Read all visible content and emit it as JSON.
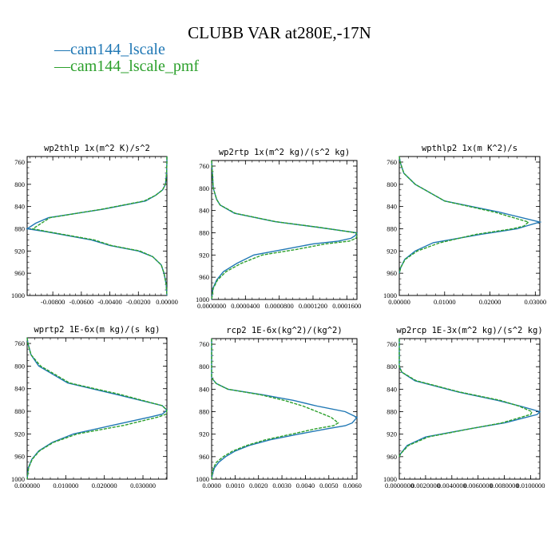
{
  "title": "CLUBB VAR at280E,-17N",
  "legend": [
    {
      "label": "cam144_lscale",
      "color": "#1f77b4"
    },
    {
      "label": "cam144_lscale_pmf",
      "color": "#2ca02c"
    }
  ],
  "chart_data": [
    {
      "type": "line",
      "title": "wp2thlp  1x(m^2 K)/s^2",
      "xlim": [
        -0.0098,
        0.0
      ],
      "ylim": [
        1000,
        750
      ],
      "x_ticks": [
        "-0.00800",
        "-0.00600",
        "-0.00400",
        "-0.00200",
        "0.00000"
      ],
      "x_tick_values": [
        -0.008,
        -0.006,
        -0.004,
        -0.002,
        0.0
      ],
      "y_ticks": [
        760,
        800,
        840,
        880,
        920,
        960,
        1000
      ],
      "y": [
        750,
        760,
        780,
        800,
        810,
        820,
        830,
        845,
        860,
        870,
        880,
        885,
        900,
        910,
        920,
        930,
        945,
        960,
        980,
        1000
      ],
      "series": [
        {
          "name": "cam144_lscale",
          "x": [
            0.0,
            0.0,
            -2e-05,
            -0.0001,
            -0.0003,
            -0.0008,
            -0.0015,
            -0.0045,
            -0.0083,
            -0.0092,
            -0.0098,
            -0.0085,
            -0.0053,
            -0.004,
            -0.002,
            -0.001,
            -0.0004,
            -0.0002,
            -5e-05,
            0.0
          ]
        },
        {
          "name": "cam144_lscale_pmf",
          "x": [
            0.0,
            0.0,
            -2e-05,
            -0.0001,
            -0.0003,
            -0.0008,
            -0.0016,
            -0.0046,
            -0.0082,
            -0.0088,
            -0.0094,
            -0.0084,
            -0.0051,
            -0.0039,
            -0.0019,
            -0.001,
            -0.0004,
            -0.0002,
            -5e-05,
            0.0
          ]
        }
      ]
    },
    {
      "type": "line",
      "title": "wp2rtp  1x(m^2 kg)/(s^2 kg)",
      "xlim": [
        0.0,
        0.000172
      ],
      "ylim": [
        1000,
        750
      ],
      "x_ticks": [
        "0.0000000",
        "0.0000400",
        "0.0000800",
        "0.0001200",
        "0.0001600"
      ],
      "x_tick_values": [
        0.0,
        4e-05,
        8e-05,
        0.00012,
        0.00016
      ],
      "y_ticks": [
        760,
        800,
        840,
        880,
        920,
        960,
        1000
      ],
      "y": [
        750,
        800,
        820,
        830,
        845,
        860,
        870,
        880,
        885,
        890,
        895,
        900,
        910,
        920,
        935,
        950,
        965,
        980,
        1000
      ],
      "series": [
        {
          "name": "cam144_lscale",
          "x": [
            0.0,
            2e-06,
            6e-06,
            1e-05,
            2.7e-05,
            7.5e-05,
            0.000125,
            0.000172,
            0.00017,
            0.000165,
            0.00015,
            0.00012,
            8.5e-05,
            5e-05,
            3e-05,
            1.4e-05,
            6e-06,
            1.5e-06,
            0.0
          ]
        },
        {
          "name": "cam144_lscale_pmf",
          "x": [
            0.0,
            2e-06,
            6e-06,
            1e-05,
            2.8e-05,
            7.6e-05,
            0.000126,
            0.000171,
            0.000172,
            0.000171,
            0.000163,
            0.000135,
            0.0001,
            6e-05,
            3.5e-05,
            1.7e-05,
            7e-06,
            2e-06,
            0.0
          ]
        }
      ]
    },
    {
      "type": "line",
      "title": "wpthlp2  1x(m K^2)/s",
      "xlim": [
        0.0,
        0.031
      ],
      "ylim": [
        1000,
        750
      ],
      "x_ticks": [
        "0.00000",
        "0.01000",
        "0.02000",
        "0.03000"
      ],
      "x_tick_values": [
        0.0,
        0.01,
        0.02,
        0.03
      ],
      "y_ticks": [
        760,
        800,
        840,
        880,
        920,
        960,
        1000
      ],
      "y": [
        750,
        760,
        780,
        800,
        830,
        850,
        868,
        875,
        880,
        890,
        905,
        920,
        935,
        950,
        960
      ],
      "series": [
        {
          "name": "cam144_lscale",
          "x": [
            0.0,
            0.0002,
            0.001,
            0.0035,
            0.01,
            0.022,
            0.031,
            0.028,
            0.026,
            0.018,
            0.0075,
            0.0035,
            0.0012,
            0.0003,
            0.0
          ]
        },
        {
          "name": "cam144_lscale_pmf",
          "x": [
            0.0,
            0.0002,
            0.001,
            0.0035,
            0.01,
            0.021,
            0.0285,
            0.0275,
            0.025,
            0.017,
            0.009,
            0.004,
            0.0013,
            0.0003,
            0.0
          ]
        }
      ]
    },
    {
      "type": "line",
      "title": "wprtp2  1E-6x(m kg)/(s kg)",
      "xlim": [
        0.0,
        0.0362
      ],
      "ylim": [
        1000,
        750
      ],
      "x_ticks": [
        "0.000000",
        "0.010000",
        "0.020000",
        "0.030000"
      ],
      "x_tick_values": [
        0.0,
        0.01,
        0.02,
        0.03
      ],
      "y_ticks": [
        760,
        800,
        840,
        880,
        920,
        960,
        1000
      ],
      "y": [
        750,
        760,
        780,
        800,
        830,
        850,
        870,
        878,
        885,
        890,
        905,
        920,
        935,
        950,
        965,
        980,
        1000
      ],
      "series": [
        {
          "name": "cam144_lscale",
          "x": [
            0.0,
            0.0002,
            0.001,
            0.003,
            0.0105,
            0.023,
            0.035,
            0.0362,
            0.035,
            0.032,
            0.022,
            0.012,
            0.0065,
            0.003,
            0.0012,
            0.0003,
            0.0
          ]
        },
        {
          "name": "cam144_lscale_pmf",
          "x": [
            0.0,
            0.0002,
            0.001,
            0.0035,
            0.011,
            0.024,
            0.035,
            0.0362,
            0.036,
            0.034,
            0.025,
            0.013,
            0.0068,
            0.0032,
            0.0013,
            0.0004,
            0.0
          ]
        }
      ]
    },
    {
      "type": "line",
      "title": "rcp2  1E-6x(kg^2)/(kg^2)",
      "xlim": [
        0.0,
        0.0062
      ],
      "ylim": [
        1000,
        750
      ],
      "x_ticks": [
        "0.0000",
        "0.0010",
        "0.0020",
        "0.0030",
        "0.0040",
        "0.0050",
        "0.0060"
      ],
      "x_tick_values": [
        0.0,
        0.001,
        0.002,
        0.003,
        0.004,
        0.005,
        0.006
      ],
      "y_ticks": [
        760,
        800,
        840,
        880,
        920,
        960,
        1000
      ],
      "y": [
        750,
        800,
        820,
        830,
        840,
        850,
        860,
        870,
        880,
        890,
        900,
        905,
        910,
        920,
        930,
        940,
        950,
        960,
        970,
        980,
        990,
        1000
      ],
      "series": [
        {
          "name": "cam144_lscale",
          "x": [
            0.0,
            0.0,
            0.0,
            0.0002,
            0.0007,
            0.0022,
            0.0035,
            0.0045,
            0.0057,
            0.0062,
            0.006,
            0.0057,
            0.005,
            0.0037,
            0.0025,
            0.0016,
            0.001,
            0.0006,
            0.0003,
            0.00012,
            4e-05,
            0.0
          ]
        },
        {
          "name": "cam144_lscale_pmf",
          "x": [
            0.0,
            0.0,
            0.0,
            0.0002,
            0.0007,
            0.0021,
            0.0031,
            0.0039,
            0.0045,
            0.0051,
            0.0054,
            0.0052,
            0.0045,
            0.0034,
            0.0023,
            0.0015,
            0.0009,
            0.0005,
            0.0002,
            8e-05,
            2e-05,
            0.0
          ]
        }
      ]
    },
    {
      "type": "line",
      "title": "wp2rcp  1E-3x(m^2 kg)/(s^2 kg)",
      "xlim": [
        0.0,
        0.0107
      ],
      "ylim": [
        1000,
        750
      ],
      "x_ticks": [
        "0.0000000",
        "0.0020000",
        "0.0040000",
        "0.0060000",
        "0.0080000",
        "0.0100000"
      ],
      "x_tick_values": [
        0.0,
        0.002,
        0.004,
        0.006,
        0.008,
        0.01
      ],
      "y_ticks": [
        760,
        800,
        840,
        880,
        920,
        960,
        1000
      ],
      "y": [
        750,
        800,
        810,
        825,
        845,
        860,
        870,
        880,
        885,
        900,
        910,
        925,
        940,
        955,
        960
      ],
      "series": [
        {
          "name": "cam144_lscale",
          "x": [
            0.0,
            0.0,
            0.0002,
            0.0012,
            0.0045,
            0.0075,
            0.0092,
            0.0107,
            0.0105,
            0.008,
            0.0055,
            0.002,
            0.0006,
            0.0001,
            0.0
          ]
        },
        {
          "name": "cam144_lscale_pmf",
          "x": [
            0.0,
            0.0,
            0.0002,
            0.0013,
            0.0046,
            0.0077,
            0.0091,
            0.0101,
            0.01,
            0.0078,
            0.0055,
            0.0022,
            0.0007,
            0.0001,
            0.0
          ]
        }
      ]
    }
  ]
}
